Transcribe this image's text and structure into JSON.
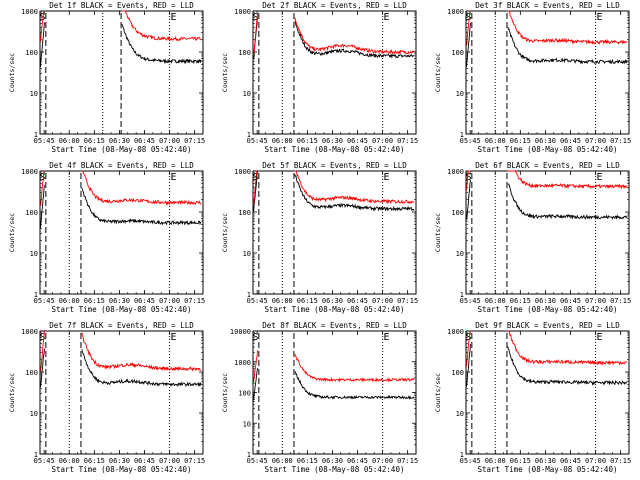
{
  "chart_data": [
    {
      "type": "line",
      "title": "Det 1f BLACK = Events, RED = LLD",
      "xlabel": "Start Time (08-May-08 05:42:40)",
      "ylabel": "Counts/sec",
      "yscale": "log",
      "ylim": [
        1,
        1000
      ],
      "xticks": [
        "05:45",
        "06:00",
        "06:15",
        "06:30",
        "06:45",
        "07:00",
        "07:15"
      ],
      "yticks": [
        "1",
        "10",
        "100",
        "1000"
      ],
      "markers": {
        "S": "05:44",
        "E": "07:00"
      },
      "dashed_lines": [
        "05:46",
        "06:31"
      ],
      "dotted_lines": [
        "06:20",
        "07:00"
      ],
      "series": [
        {
          "color": "#000000",
          "level_after_gap": 60,
          "bump": 1.15
        },
        {
          "color": "#ff0000",
          "level_after_gap": 210,
          "bump": 1.2
        }
      ]
    },
    {
      "type": "line",
      "title": "Det 2f BLACK = Events, RED = LLD",
      "xlabel": "Start Time (08-May-08 05:42:40)",
      "ylabel": "Counts/sec",
      "yscale": "log",
      "ylim": [
        1,
        1000
      ],
      "xticks": [
        "05:45",
        "06:00",
        "06:15",
        "06:30",
        "06:45",
        "07:00",
        "07:15"
      ],
      "yticks": [
        "1",
        "10",
        "100",
        "1000"
      ],
      "markers": {
        "S": "05:44",
        "E": "07:00"
      },
      "dashed_lines": [
        "05:46",
        "06:07"
      ],
      "dotted_lines": [
        "06:00",
        "07:00"
      ],
      "series": [
        {
          "color": "#000000",
          "level_after_gap": 80,
          "bump": 1.35
        },
        {
          "color": "#ff0000",
          "level_after_gap": 100,
          "bump": 1.45
        }
      ]
    },
    {
      "type": "line",
      "title": "Det 3f BLACK = Events, RED = LLD",
      "xlabel": "Start Time (08-May-08 05:42:40)",
      "ylabel": "Counts/sec",
      "yscale": "log",
      "ylim": [
        1,
        1000
      ],
      "xticks": [
        "05:45",
        "06:00",
        "06:15",
        "06:30",
        "06:45",
        "07:00",
        "07:15"
      ],
      "yticks": [
        "1",
        "10",
        "100",
        "1000"
      ],
      "markers": {
        "S": "05:44",
        "E": "07:00"
      },
      "dashed_lines": [
        "05:46",
        "06:07"
      ],
      "dotted_lines": [
        "06:00",
        "07:00"
      ],
      "series": [
        {
          "color": "#000000",
          "level_after_gap": 58,
          "bump": 1.1
        },
        {
          "color": "#ff0000",
          "level_after_gap": 175,
          "bump": 1.1
        }
      ]
    },
    {
      "type": "line",
      "title": "Det 4f BLACK = Events, RED = LLD",
      "xlabel": "Start Time (08-May-08 05:42:40)",
      "ylabel": "Counts/sec",
      "yscale": "log",
      "ylim": [
        1,
        1000
      ],
      "xticks": [
        "05:45",
        "06:00",
        "06:15",
        "06:30",
        "06:45",
        "07:00",
        "07:15"
      ],
      "yticks": [
        "1",
        "10",
        "100",
        "1000"
      ],
      "markers": {
        "S": "05:44",
        "E": "07:00"
      },
      "dashed_lines": [
        "05:46",
        "06:07"
      ],
      "dotted_lines": [
        "06:00",
        "07:00"
      ],
      "series": [
        {
          "color": "#000000",
          "level_after_gap": 55,
          "bump": 1.1
        },
        {
          "color": "#ff0000",
          "level_after_gap": 170,
          "bump": 1.15
        }
      ]
    },
    {
      "type": "line",
      "title": "Det 5f BLACK = Events, RED = LLD",
      "xlabel": "Start Time (08-May-08 05:42:40)",
      "ylabel": "Counts/sec",
      "yscale": "log",
      "ylim": [
        1,
        1000
      ],
      "xticks": [
        "05:45",
        "06:00",
        "06:15",
        "06:30",
        "06:45",
        "07:00",
        "07:15"
      ],
      "yticks": [
        "1",
        "10",
        "100",
        "1000"
      ],
      "markers": {
        "S": "05:44",
        "E": "07:00"
      },
      "dashed_lines": [
        "05:46",
        "06:07"
      ],
      "dotted_lines": [
        "06:00",
        "07:00"
      ],
      "series": [
        {
          "color": "#000000",
          "level_after_gap": 120,
          "bump": 1.2
        },
        {
          "color": "#ff0000",
          "level_after_gap": 180,
          "bump": 1.25
        }
      ]
    },
    {
      "type": "line",
      "title": "Det 6f BLACK = Events, RED = LLD",
      "xlabel": "Start Time (08-May-08 05:42:40)",
      "ylabel": "Counts/sec",
      "yscale": "log",
      "ylim": [
        1,
        1000
      ],
      "xticks": [
        "05:45",
        "06:00",
        "06:15",
        "06:30",
        "06:45",
        "07:00",
        "07:15"
      ],
      "yticks": [
        "1",
        "10",
        "100",
        "1000"
      ],
      "markers": {
        "S": "05:44",
        "E": "07:00"
      },
      "dashed_lines": [
        "05:46",
        "06:07"
      ],
      "dotted_lines": [
        "06:00",
        "07:00"
      ],
      "series": [
        {
          "color": "#000000",
          "level_after_gap": 75,
          "bump": 1.05
        },
        {
          "color": "#ff0000",
          "level_after_gap": 420,
          "bump": 1.05
        }
      ]
    },
    {
      "type": "line",
      "title": "Det 7f BLACK = Events, RED = LLD",
      "xlabel": "Start Time (08-May-08 05:42:40)",
      "ylabel": "Counts/sec",
      "yscale": "log",
      "ylim": [
        1,
        1000
      ],
      "xticks": [
        "05:45",
        "06:00",
        "06:15",
        "06:30",
        "06:45",
        "07:00",
        "07:15"
      ],
      "yticks": [
        "1",
        "10",
        "100",
        "1000"
      ],
      "markers": {
        "S": "05:44",
        "E": "07:00"
      },
      "dashed_lines": [
        "05:46",
        "06:07"
      ],
      "dotted_lines": [
        "06:00",
        "07:00"
      ],
      "series": [
        {
          "color": "#000000",
          "level_after_gap": 50,
          "bump": 1.2
        },
        {
          "color": "#ff0000",
          "level_after_gap": 120,
          "bump": 1.25
        }
      ]
    },
    {
      "type": "line",
      "title": "Det 8f BLACK = Events, RED = LLD",
      "xlabel": "Start Time (08-May-08 05:42:40)",
      "ylabel": "Counts/sec",
      "yscale": "log",
      "ylim": [
        1,
        10000
      ],
      "xticks": [
        "05:45",
        "06:00",
        "06:15",
        "06:30",
        "06:45",
        "07:00",
        "07:15"
      ],
      "yticks": [
        "1",
        "10",
        "100",
        "1000",
        "10000"
      ],
      "markers": {
        "S": "05:44",
        "E": "07:00"
      },
      "dashed_lines": [
        "05:46",
        "06:07"
      ],
      "dotted_lines": [
        "06:00",
        "07:00"
      ],
      "series": [
        {
          "color": "#000000",
          "level_after_gap": 70,
          "bump": 1.0
        },
        {
          "color": "#ff0000",
          "level_after_gap": 260,
          "bump": 1.0
        }
      ]
    },
    {
      "type": "line",
      "title": "Det 9f BLACK = Events, RED = LLD",
      "xlabel": "Start Time (08-May-08 05:42:40)",
      "ylabel": "Counts/sec",
      "yscale": "log",
      "ylim": [
        1,
        1000
      ],
      "xticks": [
        "05:45",
        "06:00",
        "06:15",
        "06:30",
        "06:45",
        "07:00",
        "07:15"
      ],
      "yticks": [
        "1",
        "10",
        "100",
        "1000"
      ],
      "markers": {
        "S": "05:44",
        "E": "07:00"
      },
      "dashed_lines": [
        "05:46",
        "06:07"
      ],
      "dotted_lines": [
        "06:00",
        "07:00"
      ],
      "series": [
        {
          "color": "#000000",
          "level_after_gap": 55,
          "bump": 1.05
        },
        {
          "color": "#ff0000",
          "level_after_gap": 170,
          "bump": 1.05
        }
      ]
    }
  ]
}
